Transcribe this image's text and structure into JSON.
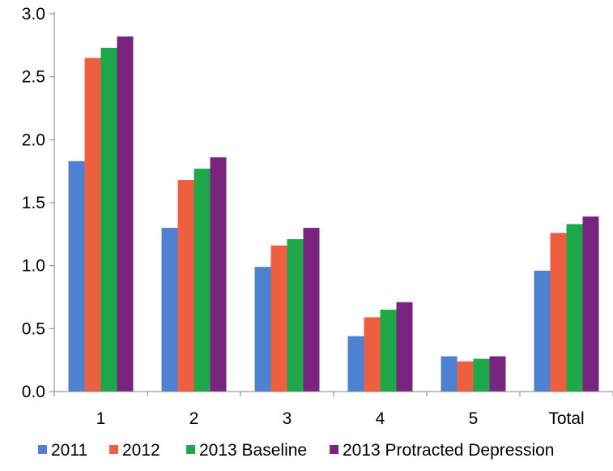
{
  "chart_data": {
    "type": "bar",
    "title": "",
    "xlabel": "",
    "ylabel": "",
    "categories": [
      "1",
      "2",
      "3",
      "4",
      "5",
      "Total"
    ],
    "ylim": [
      0,
      3.0
    ],
    "yticks": [
      "0.0",
      "0.5",
      "1.0",
      "1.5",
      "2.0",
      "2.5",
      "3.0"
    ],
    "grid": false,
    "legend_position": "bottom",
    "series": [
      {
        "name": "2011",
        "color": "#4f81d3",
        "values": [
          1.83,
          1.3,
          0.99,
          0.44,
          0.28,
          0.96
        ]
      },
      {
        "name": "2012",
        "color": "#ee5f40",
        "values": [
          2.65,
          1.68,
          1.16,
          0.59,
          0.24,
          1.26
        ]
      },
      {
        "name": "2013 Baseline",
        "color": "#1ea84a",
        "values": [
          2.73,
          1.77,
          1.21,
          0.65,
          0.26,
          1.33
        ]
      },
      {
        "name": "2013 Protracted Depression",
        "color": "#79247f",
        "values": [
          2.82,
          1.86,
          1.3,
          0.71,
          0.28,
          1.39
        ]
      }
    ]
  }
}
